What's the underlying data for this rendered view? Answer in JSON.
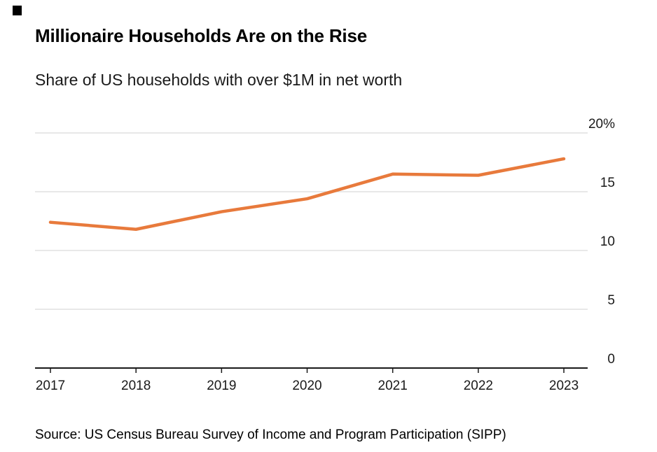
{
  "header": {
    "title": "Millionaire Households Are on the Rise",
    "subtitle": "Share of US households with over $1M in net worth"
  },
  "footer": {
    "source": "Source: US Census Bureau Survey of Income and Program Participation (SIPP)"
  },
  "decoration": {
    "corner_mark_color": "#000000"
  },
  "chart_data": {
    "type": "line",
    "title": "Millionaire Households Are on the Rise",
    "subtitle": "Share of US households with over $1M in net worth",
    "x": [
      2017,
      2018,
      2019,
      2020,
      2021,
      2022,
      2023
    ],
    "series": [
      {
        "name": "Share of US households with over $1M in net worth",
        "values": [
          12.4,
          11.8,
          13.3,
          14.4,
          16.5,
          16.4,
          17.8
        ]
      }
    ],
    "unit": "%",
    "ylim": [
      0,
      20
    ],
    "y_ticks": [
      {
        "value": 20,
        "label": "20%"
      },
      {
        "value": 15,
        "label": "15"
      },
      {
        "value": 10,
        "label": "10"
      },
      {
        "value": 5,
        "label": "5"
      },
      {
        "value": 0,
        "label": "0"
      }
    ],
    "grid": "horizontal",
    "y_axis_side": "right",
    "legend": "none",
    "colors": {
      "line": "#E87A3C",
      "gridline": "#D9D9D9",
      "axis": "#1a1a1a",
      "text": "#000000"
    },
    "source": "Source: US Census Bureau Survey of Income and Program Participation (SIPP)"
  }
}
